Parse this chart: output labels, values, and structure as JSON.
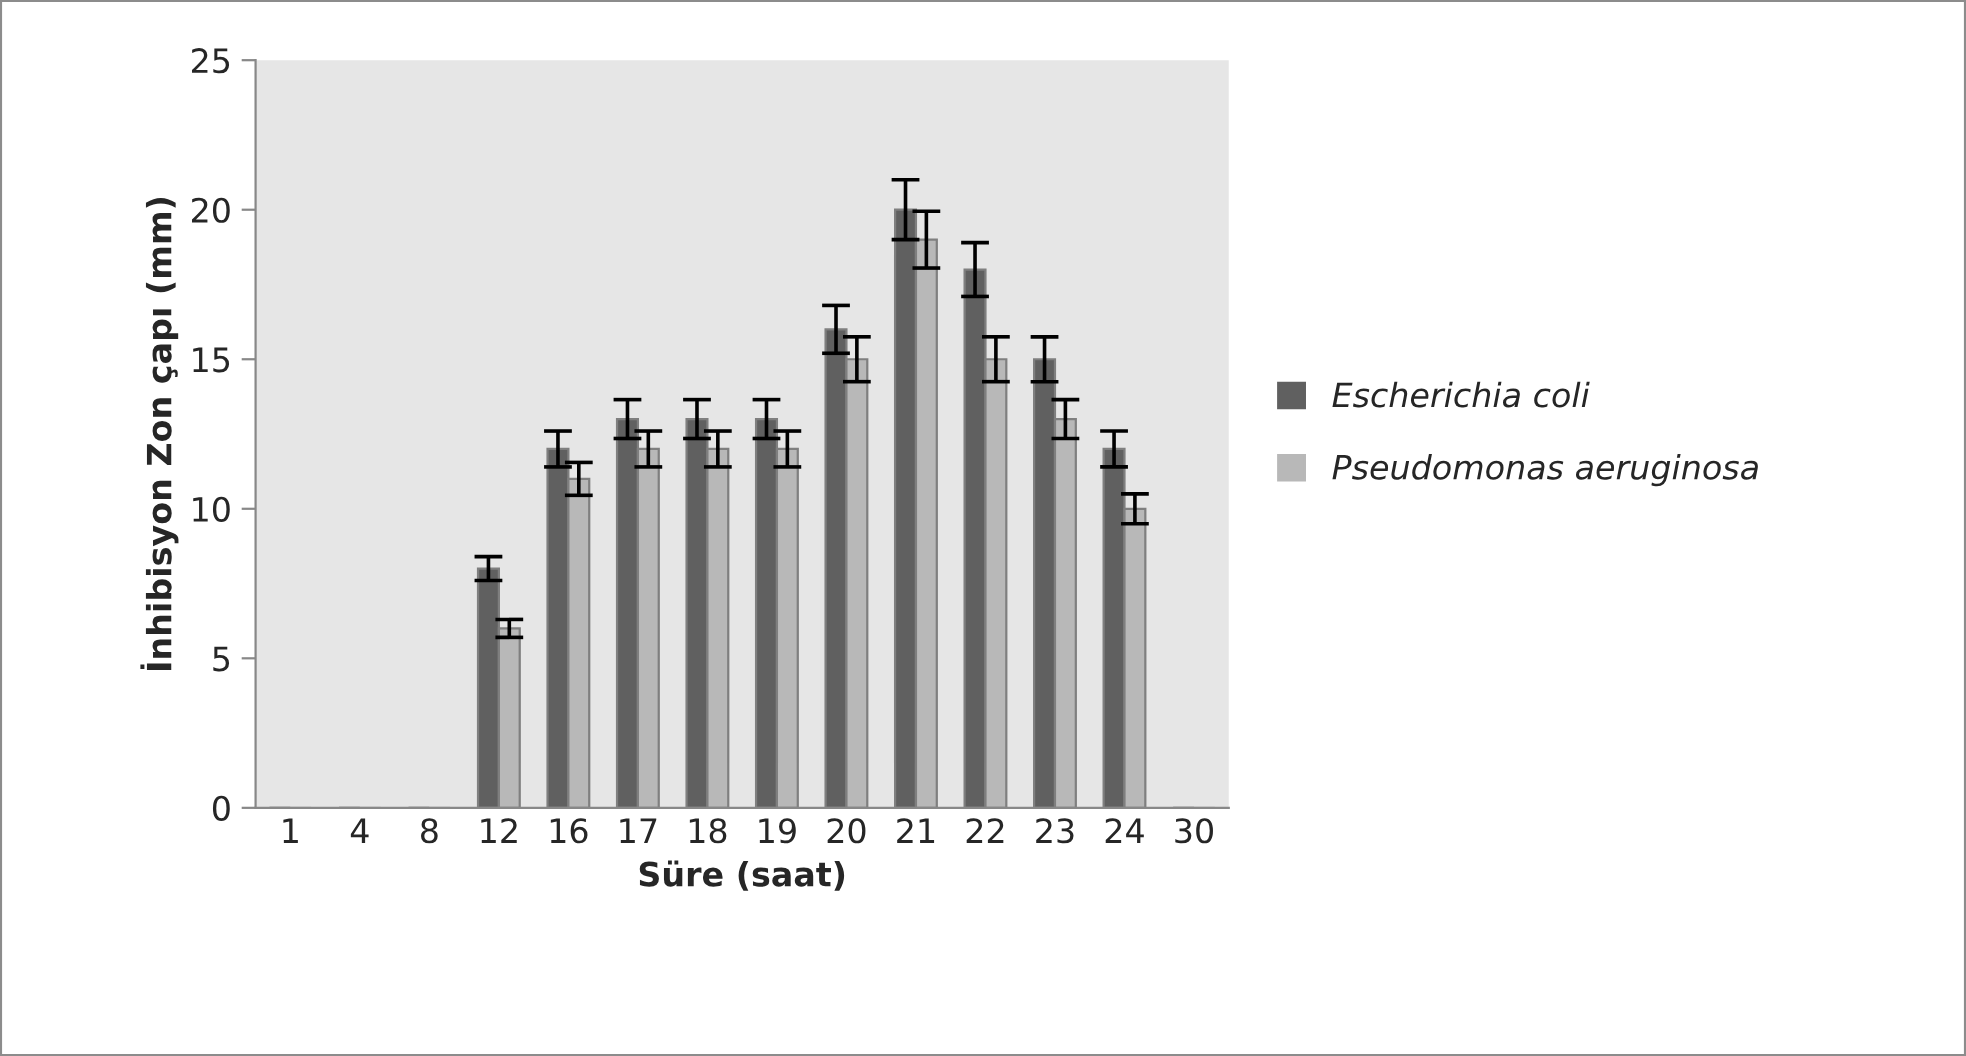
{
  "chart_data": {
    "type": "bar",
    "xlabel": "Süre (saat)",
    "ylabel": "İnhibisyon Zon çapı (mm)",
    "categories": [
      "1",
      "4",
      "8",
      "12",
      "16",
      "17",
      "18",
      "19",
      "20",
      "21",
      "22",
      "23",
      "24",
      "30"
    ],
    "series": [
      {
        "name": "Escherichia coli",
        "color": "#606060",
        "values": [
          0,
          0,
          0,
          8,
          12,
          13,
          13,
          13,
          16,
          20,
          18,
          15,
          12,
          0
        ],
        "errors": [
          null,
          null,
          null,
          0.4,
          0.6,
          0.65,
          0.65,
          0.65,
          0.8,
          1,
          0.9,
          0.75,
          0.6,
          null
        ]
      },
      {
        "name": "Pseudomonas aeruginosa",
        "color": "#b8b8b8",
        "values": [
          0,
          0,
          0,
          6,
          11,
          12,
          12,
          12,
          15,
          19,
          15,
          13,
          10,
          0
        ],
        "errors": [
          null,
          null,
          null,
          0.3,
          0.55,
          0.6,
          0.6,
          0.6,
          0.75,
          0.95,
          0.75,
          0.65,
          0.5,
          null
        ]
      }
    ],
    "ylim": [
      0,
      25
    ],
    "yticks": [
      0,
      5,
      10,
      15,
      20,
      25
    ],
    "grid": false,
    "legend": "right"
  }
}
